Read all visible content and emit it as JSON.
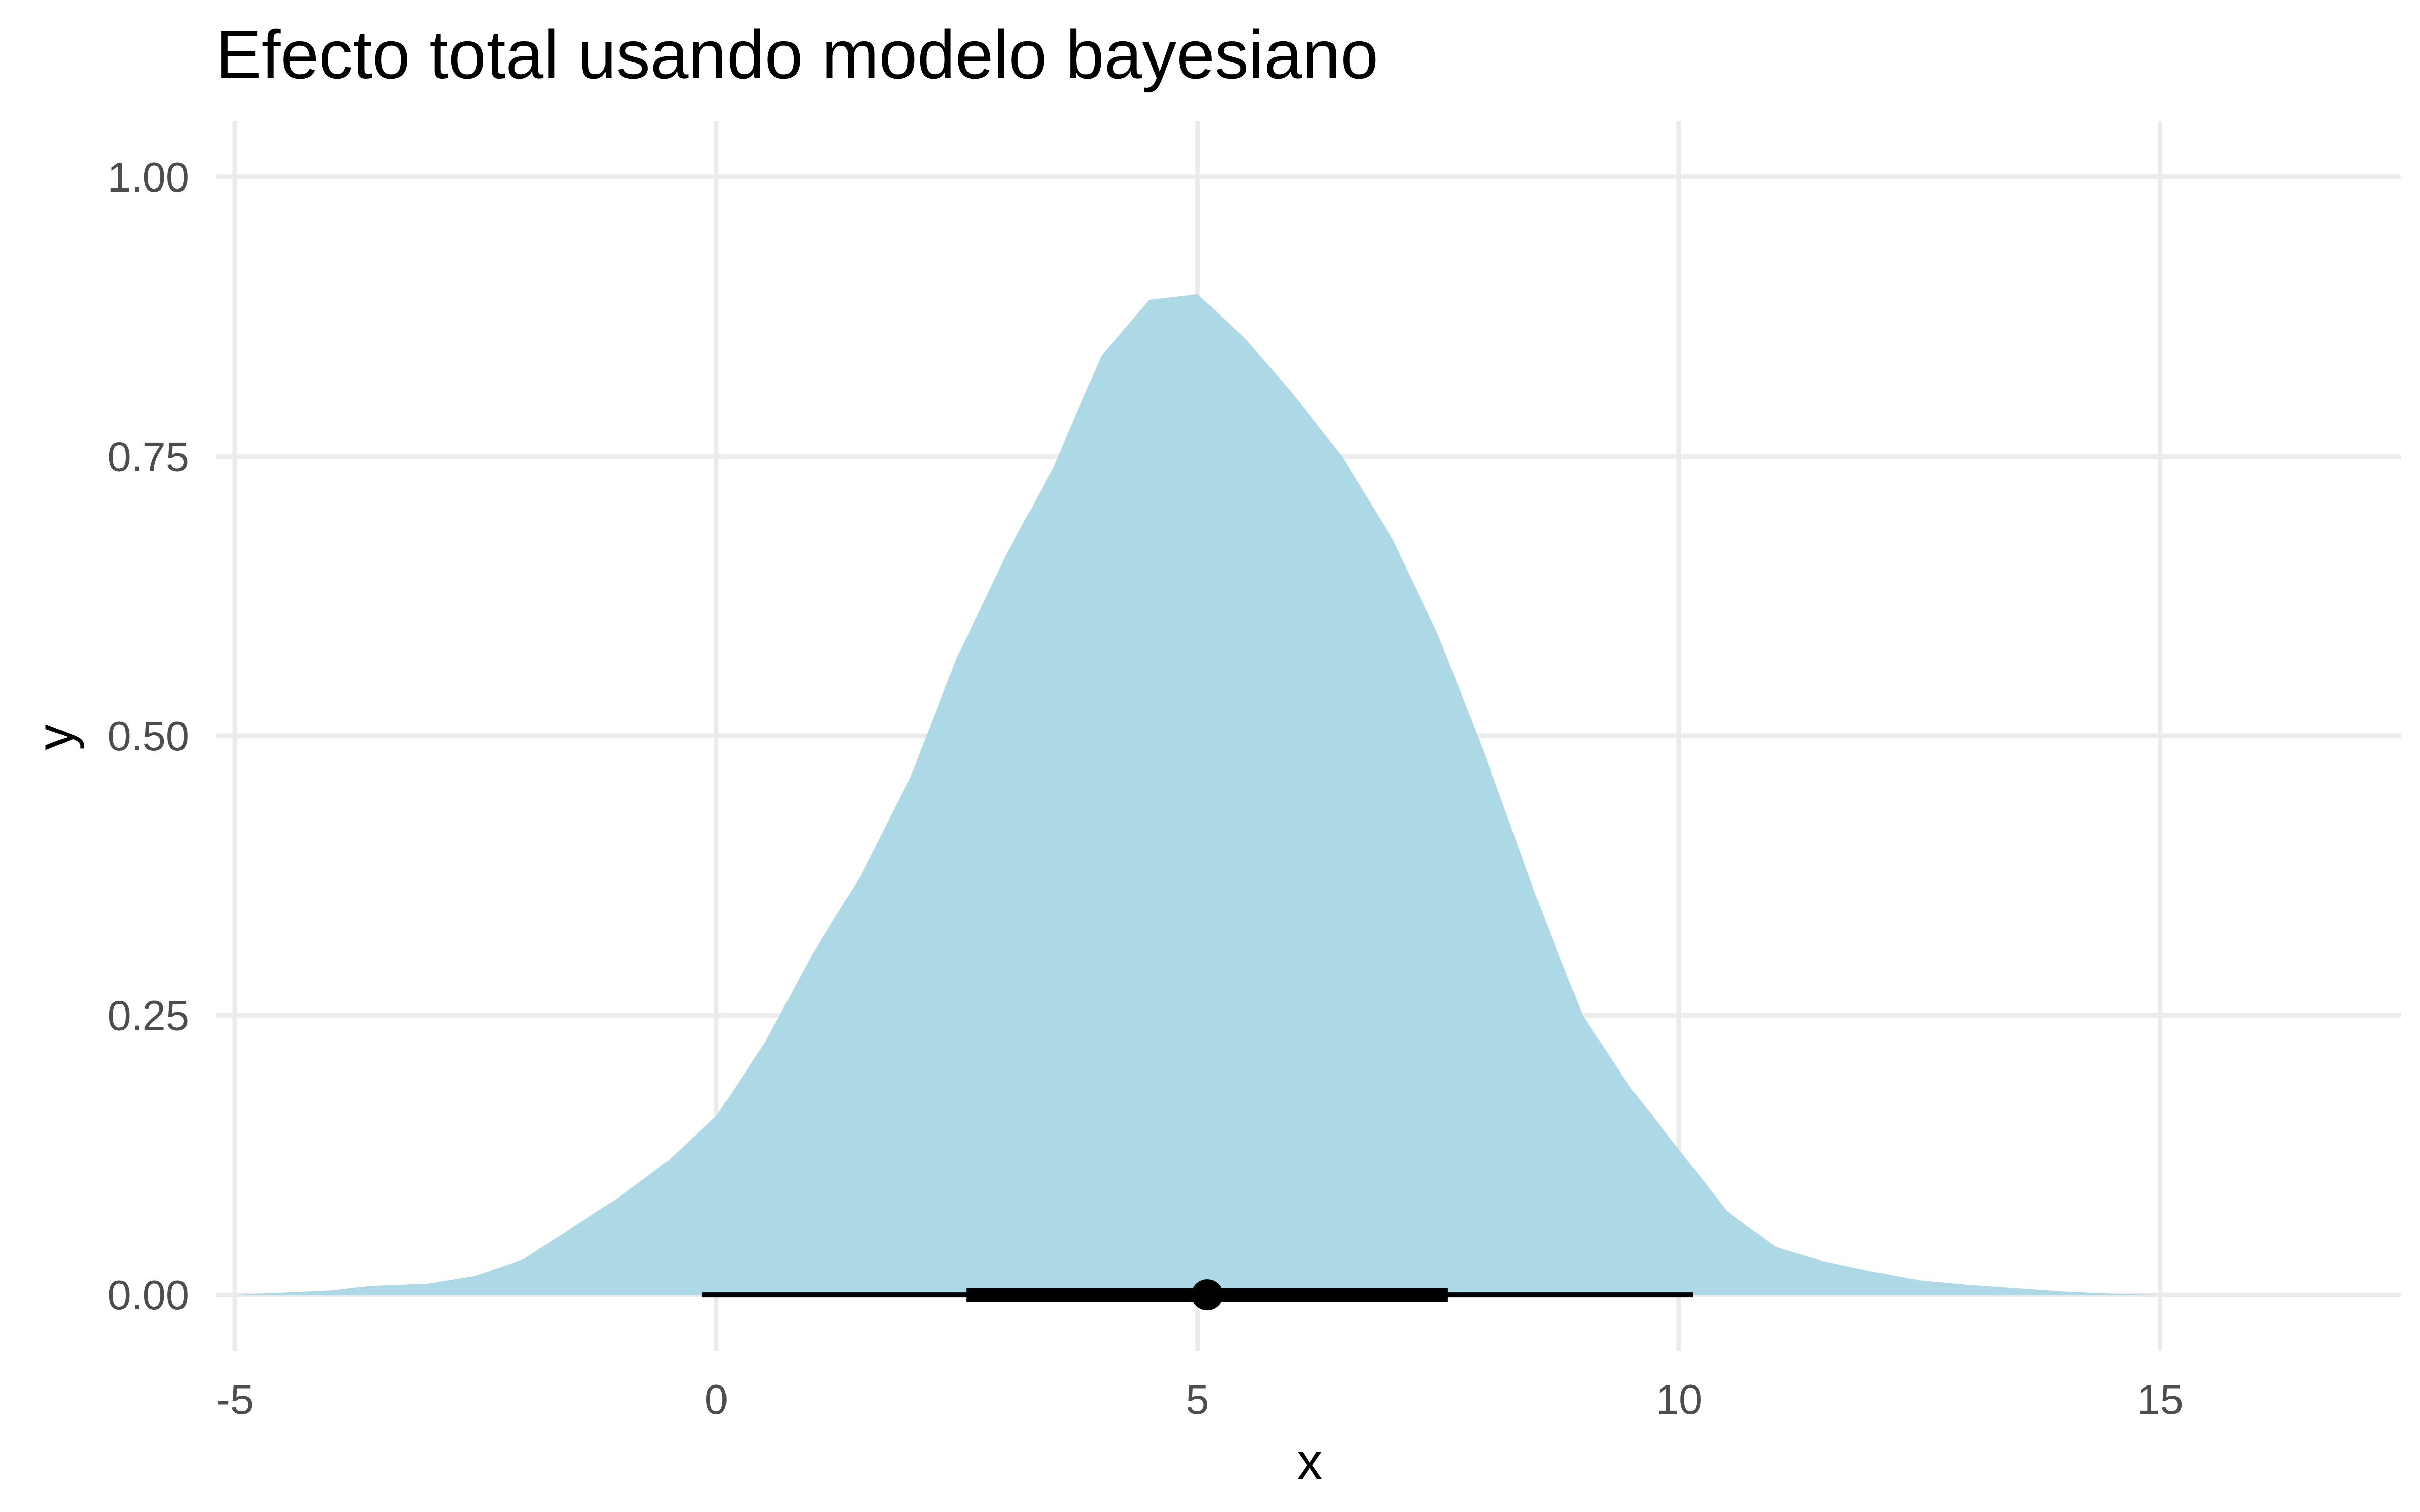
{
  "chart_data": {
    "type": "area",
    "title": "Efecto total usando modelo bayesiano",
    "xlabel": "x",
    "ylabel": "y",
    "xlim": [
      -5.2,
      17.5
    ],
    "ylim": [
      -0.05,
      1.05
    ],
    "x_ticks": [
      {
        "value": -5,
        "label": "-5"
      },
      {
        "value": 0,
        "label": "0"
      },
      {
        "value": 5,
        "label": "5"
      },
      {
        "value": 10,
        "label": "10"
      },
      {
        "value": 15,
        "label": "15"
      }
    ],
    "y_ticks": [
      {
        "value": 0,
        "label": "0.00"
      },
      {
        "value": 0.25,
        "label": "0.25"
      },
      {
        "value": 0.5,
        "label": "0.50"
      },
      {
        "value": 0.75,
        "label": "0.75"
      },
      {
        "value": 1,
        "label": "1.00"
      }
    ],
    "grid": true,
    "colors": {
      "density_fill": "#add8e6",
      "grid": "#ebebeb",
      "interval": "#000000"
    },
    "density": {
      "x": [
        -5,
        -4.5,
        -4,
        -3.6,
        -3,
        -2.5,
        -2,
        -1.5,
        -1,
        -0.5,
        0,
        0.5,
        1,
        1.5,
        2,
        2.5,
        3,
        3.5,
        4,
        4.5,
        5,
        5.5,
        6,
        6.5,
        7,
        7.5,
        8,
        8.5,
        9,
        9.5,
        10,
        10.5,
        11,
        11.5,
        12,
        12.5,
        13,
        13.5,
        14,
        14.5,
        15,
        16,
        17
      ],
      "y": [
        0.0,
        0.002,
        0.004,
        0.008,
        0.01,
        0.017,
        0.032,
        0.06,
        0.088,
        0.12,
        0.16,
        0.225,
        0.305,
        0.375,
        0.46,
        0.57,
        0.66,
        0.74,
        0.84,
        0.89,
        0.895,
        0.855,
        0.805,
        0.75,
        0.68,
        0.59,
        0.48,
        0.36,
        0.25,
        0.185,
        0.13,
        0.075,
        0.043,
        0.03,
        0.021,
        0.013,
        0.009,
        0.006,
        0.003,
        0.001,
        0.0,
        0.0,
        0.0
      ]
    },
    "point_interval": {
      "point": 5.1,
      "inner_interval": [
        2.6,
        7.6
      ],
      "outer_interval": [
        -0.15,
        10.15
      ]
    }
  }
}
